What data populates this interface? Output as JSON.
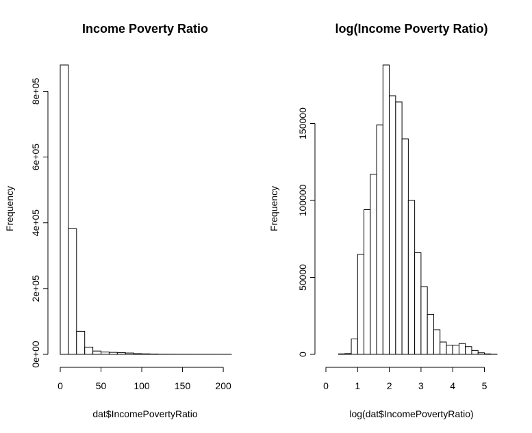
{
  "chart_data": [
    {
      "type": "bar",
      "title": "Income Poverty Ratio",
      "xlabel": "dat$IncomePovertyRatio",
      "ylabel": "Frequency",
      "bin_width": 10,
      "bin_edges_start": 0,
      "xlim": [
        0,
        210
      ],
      "ylim": [
        0,
        880000
      ],
      "x_ticks": [
        0,
        50,
        100,
        150,
        200
      ],
      "x_tick_labels": [
        "0",
        "50",
        "100",
        "150",
        "200"
      ],
      "y_ticks": [
        0,
        200000,
        400000,
        600000,
        800000
      ],
      "y_tick_labels": [
        "0e+00",
        "2e+05",
        "4e+05",
        "6e+05",
        "8e+05"
      ],
      "values": [
        880000,
        382000,
        70000,
        22000,
        10000,
        7000,
        6000,
        5000,
        4000,
        2000,
        1500,
        1000,
        400,
        300,
        200,
        150,
        100,
        100,
        80,
        60,
        40
      ]
    },
    {
      "type": "bar",
      "title": "log(Income Poverty Ratio)",
      "xlabel": "log(dat$IncomePovertyRatio)",
      "ylabel": "Frequency",
      "bin_width": 0.2,
      "bin_edges_start": 0,
      "xlim": [
        0,
        5.4
      ],
      "ylim": [
        0,
        188000
      ],
      "x_ticks": [
        0,
        1,
        2,
        3,
        4,
        5
      ],
      "x_tick_labels": [
        "0",
        "1",
        "2",
        "3",
        "4",
        "5"
      ],
      "y_ticks": [
        0,
        50000,
        100000,
        150000
      ],
      "y_tick_labels": [
        "0",
        "50000",
        "100000",
        "150000"
      ],
      "values": [
        0,
        0,
        300,
        500,
        10000,
        65000,
        94000,
        117000,
        149000,
        188000,
        168000,
        164000,
        140000,
        100000,
        66000,
        44000,
        26000,
        16000,
        8000,
        6000,
        6000,
        7000,
        5000,
        2500,
        1000,
        300,
        100
      ]
    }
  ]
}
